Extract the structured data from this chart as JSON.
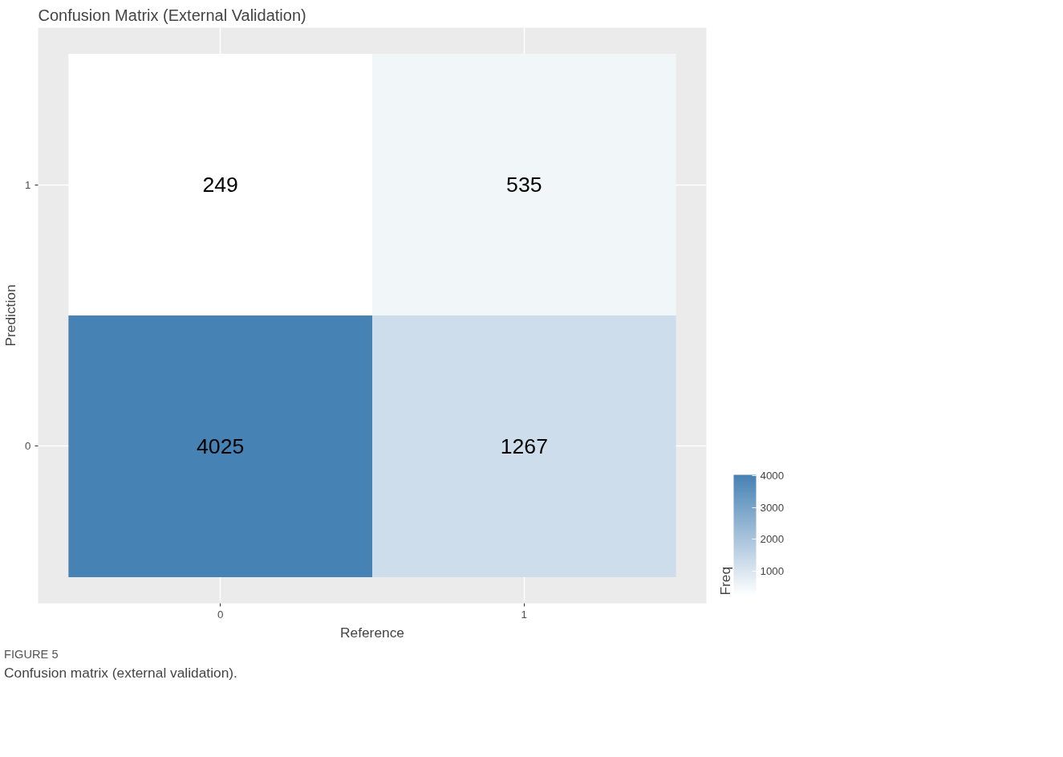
{
  "chart_data": {
    "type": "heatmap",
    "title": "Confusion Matrix (External Validation)",
    "xlabel": "Reference",
    "ylabel": "Prediction",
    "categories": [
      "0",
      "1"
    ],
    "y_categories": [
      "1",
      "0"
    ],
    "cells": [
      [
        249,
        535
      ],
      [
        4025,
        1267
      ]
    ],
    "clabel": "Freq",
    "clim": [
      249,
      4025
    ],
    "cticks": [
      1000,
      2000,
      3000,
      4000
    ],
    "colors": [
      "#ffffff",
      "#4682b4"
    ],
    "data_labels": true,
    "grid": true,
    "annotations": [
      "FIGURE 5",
      "Confusion matrix (external validation)."
    ]
  }
}
